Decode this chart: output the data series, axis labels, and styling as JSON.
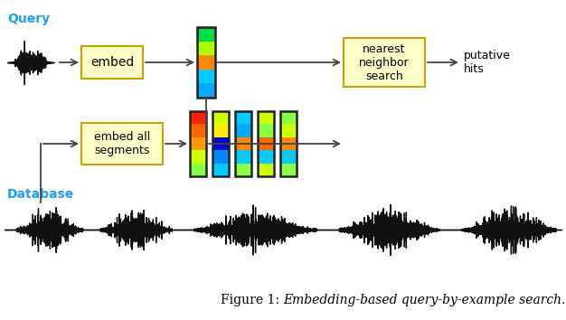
{
  "title_prefix": "Figure 1: ",
  "title_italic": "Embedding-based query-by-example search.",
  "bg_color": "#ffffff",
  "query_label": "Query",
  "database_label": "Database",
  "label_color": "#1a9fff",
  "embed_box_text": "embed",
  "embed_all_box_text": "embed all\nsegments",
  "nn_box_text": "nearest\nneighbor\nsearch",
  "putative_hits_text": "putative\nhits",
  "box_fill": "#ffffc8",
  "box_edge": "#c8a000",
  "query_embed_colors": [
    "#00dd44",
    "#aaff00",
    "#ff8800",
    "#00ccff",
    "#00aaff"
  ],
  "db_embed1_colors": [
    "#ff2200",
    "#ff6600",
    "#ff9900",
    "#ccff00",
    "#88ff44"
  ],
  "db_embed2_colors": [
    "#ccff00",
    "#ffee00",
    "#0000dd",
    "#0088ff",
    "#00ccff"
  ],
  "db_embed3_colors": [
    "#00ccff",
    "#00aaff",
    "#ff8800",
    "#00ccff",
    "#88ff44"
  ],
  "db_embed4_colors": [
    "#ccff00",
    "#88ff44",
    "#ff6600",
    "#00ccff",
    "#ccff00"
  ],
  "db_embed5_colors": [
    "#88ff44",
    "#ccff00",
    "#ff8800",
    "#00ccff",
    "#88ff44"
  ],
  "arrow_color": "#444444",
  "waveform_color": "#111111",
  "embed_border": "#222222"
}
